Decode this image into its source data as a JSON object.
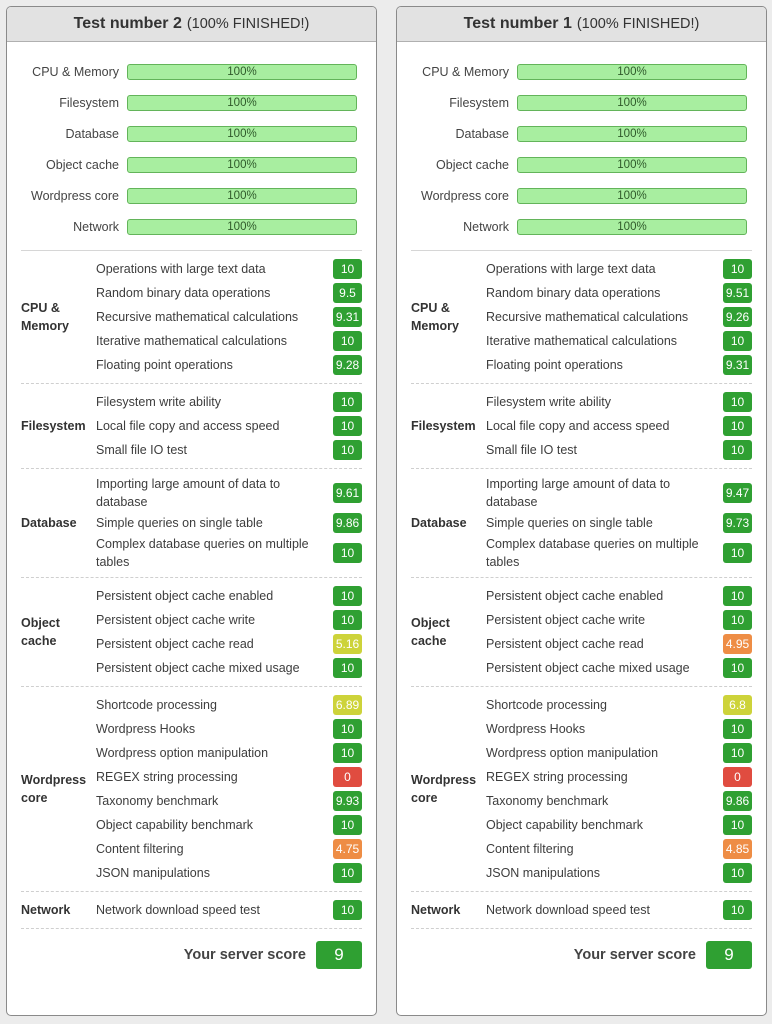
{
  "panels": [
    {
      "title": "Test number 2",
      "status": "(100% FINISHED!)",
      "progress": [
        {
          "label": "CPU & Memory",
          "value": "100%"
        },
        {
          "label": "Filesystem",
          "value": "100%"
        },
        {
          "label": "Database",
          "value": "100%"
        },
        {
          "label": "Object cache",
          "value": "100%"
        },
        {
          "label": "Wordpress core",
          "value": "100%"
        },
        {
          "label": "Network",
          "value": "100%"
        }
      ],
      "sections": [
        {
          "name": "CPU & Memory",
          "items": [
            {
              "label": "Operations with large text data",
              "score": "10"
            },
            {
              "label": "Random binary data operations",
              "score": "9.5"
            },
            {
              "label": "Recursive mathematical calculations",
              "score": "9.31"
            },
            {
              "label": "Iterative mathematical calculations",
              "score": "10"
            },
            {
              "label": "Floating point operations",
              "score": "9.28"
            }
          ]
        },
        {
          "name": "Filesystem",
          "items": [
            {
              "label": "Filesystem write ability",
              "score": "10"
            },
            {
              "label": "Local file copy and access speed",
              "score": "10"
            },
            {
              "label": "Small file IO test",
              "score": "10"
            }
          ]
        },
        {
          "name": "Database",
          "items": [
            {
              "label": "Importing large amount of data to database",
              "score": "9.61"
            },
            {
              "label": "Simple queries on single table",
              "score": "9.86"
            },
            {
              "label": "Complex database queries on multiple tables",
              "score": "10"
            }
          ]
        },
        {
          "name": "Object cache",
          "items": [
            {
              "label": "Persistent object cache enabled",
              "score": "10"
            },
            {
              "label": "Persistent object cache write",
              "score": "10"
            },
            {
              "label": "Persistent object cache read",
              "score": "5.16"
            },
            {
              "label": "Persistent object cache mixed usage",
              "score": "10"
            }
          ]
        },
        {
          "name": "Wordpress core",
          "items": [
            {
              "label": "Shortcode processing",
              "score": "6.89"
            },
            {
              "label": "Wordpress Hooks",
              "score": "10"
            },
            {
              "label": "Wordpress option manipulation",
              "score": "10"
            },
            {
              "label": "REGEX string processing",
              "score": "0"
            },
            {
              "label": "Taxonomy benchmark",
              "score": "9.93"
            },
            {
              "label": "Object capability benchmark",
              "score": "10"
            },
            {
              "label": "Content filtering",
              "score": "4.75"
            },
            {
              "label": "JSON manipulations",
              "score": "10"
            }
          ]
        },
        {
          "name": "Network",
          "items": [
            {
              "label": "Network download speed test",
              "score": "10"
            }
          ]
        }
      ],
      "score_label": "Your server score",
      "score": "9"
    },
    {
      "title": "Test number 1",
      "status": "(100% FINISHED!)",
      "progress": [
        {
          "label": "CPU & Memory",
          "value": "100%"
        },
        {
          "label": "Filesystem",
          "value": "100%"
        },
        {
          "label": "Database",
          "value": "100%"
        },
        {
          "label": "Object cache",
          "value": "100%"
        },
        {
          "label": "Wordpress core",
          "value": "100%"
        },
        {
          "label": "Network",
          "value": "100%"
        }
      ],
      "sections": [
        {
          "name": "CPU & Memory",
          "items": [
            {
              "label": "Operations with large text data",
              "score": "10"
            },
            {
              "label": "Random binary data operations",
              "score": "9.51"
            },
            {
              "label": "Recursive mathematical calculations",
              "score": "9.26"
            },
            {
              "label": "Iterative mathematical calculations",
              "score": "10"
            },
            {
              "label": "Floating point operations",
              "score": "9.31"
            }
          ]
        },
        {
          "name": "Filesystem",
          "items": [
            {
              "label": "Filesystem write ability",
              "score": "10"
            },
            {
              "label": "Local file copy and access speed",
              "score": "10"
            },
            {
              "label": "Small file IO test",
              "score": "10"
            }
          ]
        },
        {
          "name": "Database",
          "items": [
            {
              "label": "Importing large amount of data to database",
              "score": "9.47"
            },
            {
              "label": "Simple queries on single table",
              "score": "9.73"
            },
            {
              "label": "Complex database queries on multiple tables",
              "score": "10"
            }
          ]
        },
        {
          "name": "Object cache",
          "items": [
            {
              "label": "Persistent object cache enabled",
              "score": "10"
            },
            {
              "label": "Persistent object cache write",
              "score": "10"
            },
            {
              "label": "Persistent object cache read",
              "score": "4.95"
            },
            {
              "label": "Persistent object cache mixed usage",
              "score": "10"
            }
          ]
        },
        {
          "name": "Wordpress core",
          "items": [
            {
              "label": "Shortcode processing",
              "score": "6.8"
            },
            {
              "label": "Wordpress Hooks",
              "score": "10"
            },
            {
              "label": "Wordpress option manipulation",
              "score": "10"
            },
            {
              "label": "REGEX string processing",
              "score": "0"
            },
            {
              "label": "Taxonomy benchmark",
              "score": "9.86"
            },
            {
              "label": "Object capability benchmark",
              "score": "10"
            },
            {
              "label": "Content filtering",
              "score": "4.85"
            },
            {
              "label": "JSON manipulations",
              "score": "10"
            }
          ]
        },
        {
          "name": "Network",
          "items": [
            {
              "label": "Network download speed test",
              "score": "10"
            }
          ]
        }
      ],
      "score_label": "Your server score",
      "score": "9"
    }
  ],
  "colors": {
    "green": "#2fa032",
    "yellow": "#cdd33a",
    "orange": "#ee8d45",
    "red": "#e04c40",
    "progress_fill": "#a8eea0"
  }
}
